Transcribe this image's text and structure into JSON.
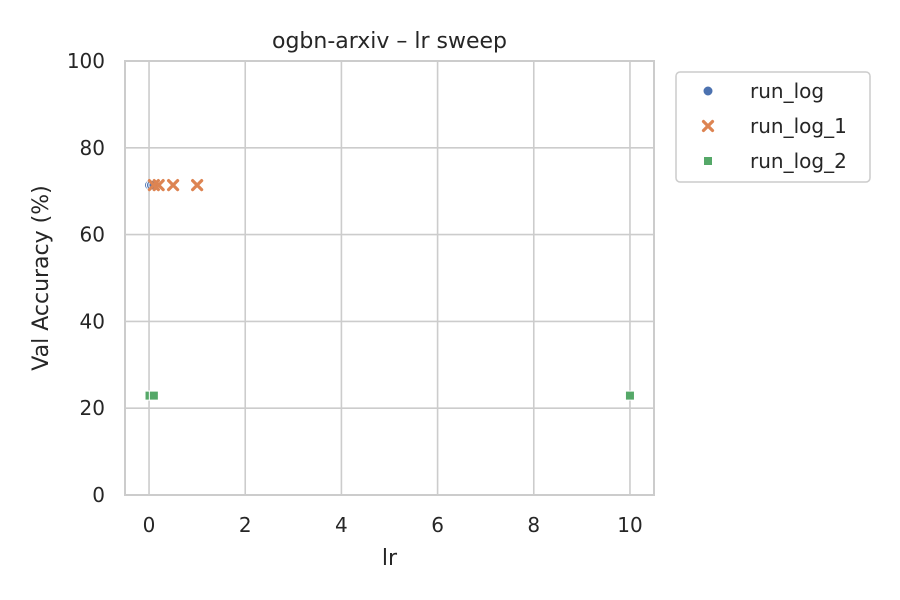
{
  "chart_data": {
    "type": "scatter",
    "title": "ogbn-arxiv – lr sweep",
    "xlabel": "lr",
    "ylabel": "Val Accuracy (%)",
    "xlim": [
      -0.5,
      10.5
    ],
    "ylim": [
      0,
      100
    ],
    "xticks": [
      0,
      2,
      4,
      6,
      8,
      10
    ],
    "yticks": [
      0,
      20,
      40,
      60,
      80,
      100
    ],
    "grid": true,
    "legend_position": "outside-top-right",
    "series": [
      {
        "name": "run_log",
        "marker": "circle",
        "color": "#4c72b0",
        "points": [
          {
            "x": 0.01,
            "y": 71.4
          },
          {
            "x": 0.05,
            "y": 71.4
          },
          {
            "x": 0.1,
            "y": 71.4
          }
        ]
      },
      {
        "name": "run_log_1",
        "marker": "x",
        "color": "#dd8452",
        "points": [
          {
            "x": 0.1,
            "y": 71.4
          },
          {
            "x": 0.2,
            "y": 71.4
          },
          {
            "x": 0.5,
            "y": 71.4
          },
          {
            "x": 1.0,
            "y": 71.4
          }
        ]
      },
      {
        "name": "run_log_2",
        "marker": "square",
        "color": "#55a868",
        "points": [
          {
            "x": 0.01,
            "y": 22.9
          },
          {
            "x": 0.1,
            "y": 22.9
          },
          {
            "x": 10.0,
            "y": 22.9
          }
        ]
      }
    ]
  }
}
